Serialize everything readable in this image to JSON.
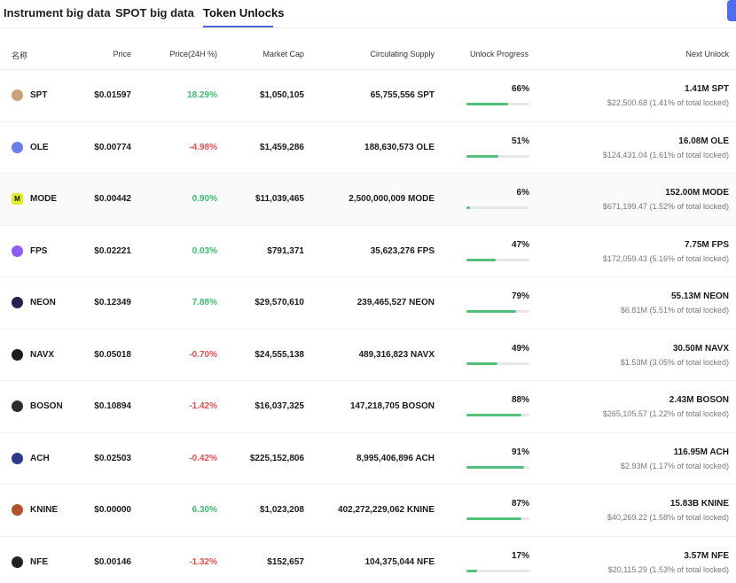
{
  "tabs": [
    {
      "label": "Instrument big data"
    },
    {
      "label": "SPOT big data"
    },
    {
      "label": "Token Unlocks"
    }
  ],
  "table": {
    "headers": {
      "name": "名称",
      "price": "Price",
      "change": "Price(24H %)",
      "mcap": "Market Cap",
      "supply": "Circulating Supply",
      "progress": "Unlock Progress",
      "next": "Next Unlock"
    },
    "rows": [
      {
        "icon": "spt-coin-icon",
        "color": "#c9a27a",
        "name": "SPT",
        "price": "$0.01597",
        "change": "18.29%",
        "dir": "up",
        "mcap": "$1,050,105",
        "supply": "65,755,556 SPT",
        "progress": "66%",
        "progress_value": 66,
        "next_amount": "1.41M SPT",
        "next_detail": "$22,500.68 (1.41% of total locked)"
      },
      {
        "icon": "ole-coin-icon",
        "color": "#6b7fe8",
        "name": "OLE",
        "price": "$0.00774",
        "change": "-4.98%",
        "dir": "down",
        "mcap": "$1,459,286",
        "supply": "188,630,573 OLE",
        "progress": "51%",
        "progress_value": 51,
        "next_amount": "16.08M OLE",
        "next_detail": "$124,431.04 (1.61% of total locked)"
      },
      {
        "icon": "mode-coin-icon",
        "color": "#dfee2b",
        "name": "MODE",
        "price": "$0.00442",
        "change": "0.90%",
        "dir": "up",
        "mcap": "$11,039,465",
        "supply": "2,500,000,009 MODE",
        "progress": "6%",
        "progress_value": 6,
        "next_amount": "152.00M MODE",
        "next_detail": "$671,199.47 (1.52% of total locked)"
      },
      {
        "icon": "fps-coin-icon",
        "color": "#8f5cf0",
        "name": "FPS",
        "price": "$0.02221",
        "change": "0.03%",
        "dir": "up",
        "mcap": "$791,371",
        "supply": "35,623,276 FPS",
        "progress": "47%",
        "progress_value": 47,
        "next_amount": "7.75M FPS",
        "next_detail": "$172,059.43 (5.16% of total locked)"
      },
      {
        "icon": "neon-coin-icon",
        "color": "#2b1f4f",
        "name": "NEON",
        "price": "$0.12349",
        "change": "7.88%",
        "dir": "up",
        "mcap": "$29,570,610",
        "supply": "239,465,527 NEON",
        "progress": "79%",
        "progress_value": 79,
        "next_amount": "55.13M NEON",
        "next_detail": "$6.81M (5.51% of total locked)"
      },
      {
        "icon": "navx-coin-icon",
        "color": "#1d1d1d",
        "name": "NAVX",
        "price": "$0.05018",
        "change": "-0.70%",
        "dir": "down",
        "mcap": "$24,555,138",
        "supply": "489,316,823 NAVX",
        "progress": "49%",
        "progress_value": 49,
        "next_amount": "30.50M NAVX",
        "next_detail": "$1.53M (3.05% of total locked)"
      },
      {
        "icon": "boson-coin-icon",
        "color": "#2d2d2d",
        "name": "BOSON",
        "price": "$0.10894",
        "change": "-1.42%",
        "dir": "down",
        "mcap": "$16,037,325",
        "supply": "147,218,705 BOSON",
        "progress": "88%",
        "progress_value": 88,
        "next_amount": "2.43M BOSON",
        "next_detail": "$265,105.57 (1.22% of total locked)"
      },
      {
        "icon": "ach-coin-icon",
        "color": "#2b3a8f",
        "name": "ACH",
        "price": "$0.02503",
        "change": "-0.42%",
        "dir": "down",
        "mcap": "$225,152,806",
        "supply": "8,995,406,896 ACH",
        "progress": "91%",
        "progress_value": 91,
        "next_amount": "116.95M ACH",
        "next_detail": "$2.93M (1.17% of total locked)"
      },
      {
        "icon": "knine-coin-icon",
        "color": "#b0522b",
        "name": "KNINE",
        "price": "$0.00000",
        "change": "6.30%",
        "dir": "up",
        "mcap": "$1,023,208",
        "supply": "402,272,229,062 KNINE",
        "progress": "87%",
        "progress_value": 87,
        "next_amount": "15.83B KNINE",
        "next_detail": "$40,269.22 (1.58% of total locked)"
      },
      {
        "icon": "nfe-coin-icon",
        "color": "#222222",
        "name": "NFE",
        "price": "$0.00146",
        "change": "-1.32%",
        "dir": "down",
        "mcap": "$152,657",
        "supply": "104,375,044 NFE",
        "progress": "17%",
        "progress_value": 17,
        "next_amount": "3.57M NFE",
        "next_detail": "$20,115.29 (1.53% of total locked)"
      }
    ]
  }
}
